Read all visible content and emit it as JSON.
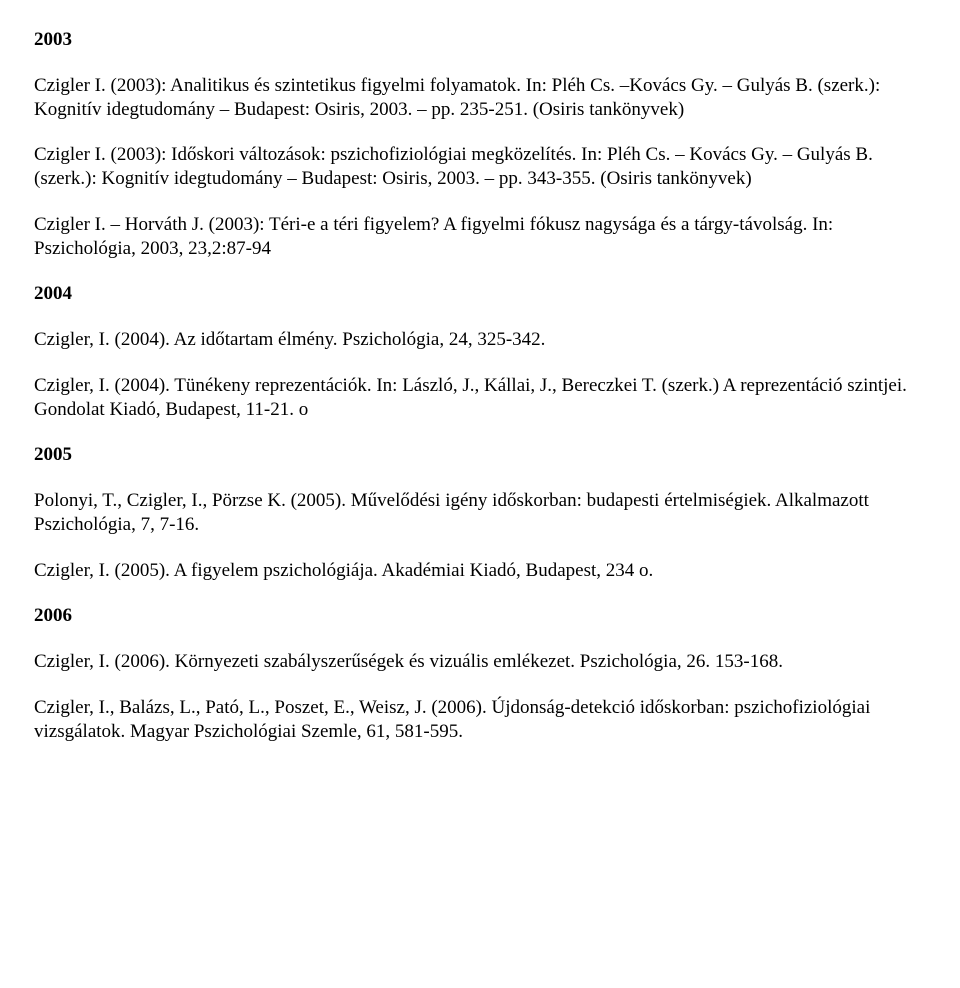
{
  "sections": [
    {
      "year": "2003",
      "entries": [
        "Czigler I. (2003): Analitikus és szintetikus figyelmi folyamatok. In: Pléh Cs. –Kovács Gy. – Gulyás B. (szerk.): Kognitív idegtudomány – Budapest: Osiris, 2003. – pp. 235-251. (Osiris tankönyvek)",
        "Czigler I. (2003): Időskori változások: pszichofiziológiai megközelítés. In: Pléh Cs. – Kovács Gy. – Gulyás B. (szerk.): Kognitív idegtudomány – Budapest: Osiris, 2003. – pp. 343-355. (Osiris tankönyvek)",
        "Czigler I. – Horváth J. (2003): Téri-e a téri figyelem? A figyelmi fókusz nagysága és a tárgy-távolság. In: Pszichológia, 2003, 23,2:87-94"
      ]
    },
    {
      "year": "2004",
      "entries": [
        "Czigler, I. (2004). Az időtartam élmény. Pszichológia, 24, 325-342.",
        "Czigler, I. (2004). Tünékeny reprezentációk. In: László, J., Kállai, J., Bereczkei T. (szerk.) A reprezentáció szintjei. Gondolat Kiadó, Budapest, 11-21. o"
      ]
    },
    {
      "year": "2005",
      "entries": [
        "Polonyi, T., Czigler, I., Pörzse K. (2005). Művelődési igény időskorban: budapesti értelmiségiek. Alkalmazott Pszichológia, 7, 7-16.",
        "Czigler, I. (2005). A figyelem pszichológiája. Akadémiai Kiadó, Budapest, 234 o."
      ]
    },
    {
      "year": "2006",
      "entries": [
        "Czigler, I. (2006). Környezeti szabályszerűségek és vizuális emlékezet. Pszichológia, 26. 153-168.",
        "Czigler, I., Balázs, L., Pató, L., Poszet, E., Weisz, J. (2006). Újdonság-detekció időskorban: pszichofiziológiai vizsgálatok. Magyar Pszichológiai Szemle, 61, 581-595."
      ]
    }
  ]
}
